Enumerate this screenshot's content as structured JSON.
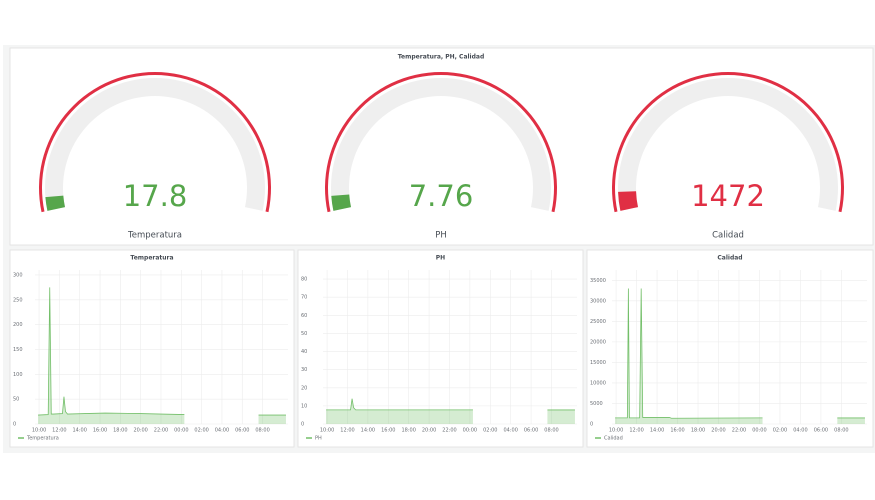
{
  "panel_title": "Temperatura, PH, Calidad",
  "chart_data": [
    {
      "type": "gauge",
      "label": "Temperatura",
      "value": 17.8,
      "ylim": [
        0,
        500
      ],
      "color": "#56a64b",
      "threshold_color": "#e02f44"
    },
    {
      "type": "gauge",
      "label": "PH",
      "value": 7.76,
      "ylim": [
        0,
        200
      ],
      "color": "#56a64b",
      "threshold_color": "#e02f44"
    },
    {
      "type": "gauge",
      "label": "Calidad",
      "value": 1472,
      "ylim": [
        0,
        30000
      ],
      "color": "#e02f44",
      "threshold_color": "#e02f44"
    },
    {
      "type": "area",
      "title": "Temperatura",
      "x": [
        9.9,
        10.9,
        11.05,
        11.2,
        11.4,
        12.3,
        12.45,
        12.6,
        12.8,
        14.5,
        16.5,
        20,
        22,
        24.3,
        24.5,
        31.6,
        34.3
      ],
      "series": [
        {
          "name": "Temperatura",
          "color": "#73bf69",
          "values": [
            18,
            19,
            275,
            20,
            20,
            21,
            55,
            25,
            20,
            21,
            22,
            21,
            20,
            19,
            null,
            18,
            18
          ]
        }
      ],
      "xlim": [
        9.6,
        34.5
      ],
      "xticks": [
        {
          "value": 10,
          "label": "10:00"
        },
        {
          "value": 12,
          "label": "12:00"
        },
        {
          "value": 14,
          "label": "14:00"
        },
        {
          "value": 16,
          "label": "16:00"
        },
        {
          "value": 18,
          "label": "18:00"
        },
        {
          "value": 20,
          "label": "20:00"
        },
        {
          "value": 22,
          "label": "22:00"
        },
        {
          "value": 24,
          "label": "00:00"
        },
        {
          "value": 26,
          "label": "02:00"
        },
        {
          "value": 28,
          "label": "04:00"
        },
        {
          "value": 30,
          "label": "06:00"
        },
        {
          "value": 32,
          "label": "08:00"
        }
      ],
      "ylim": [
        0,
        310
      ],
      "yticks": [
        0,
        50,
        100,
        150,
        200,
        250,
        300
      ],
      "grid": true
    },
    {
      "type": "area",
      "title": "PH",
      "x": [
        9.9,
        12.3,
        12.45,
        12.6,
        12.8,
        24.3,
        24.5,
        31.6,
        34.3
      ],
      "series": [
        {
          "name": "PH",
          "color": "#73bf69",
          "values": [
            7.8,
            7.8,
            14,
            9,
            7.8,
            7.8,
            null,
            7.76,
            7.76
          ]
        }
      ],
      "xlim": [
        9.6,
        34.5
      ],
      "xticks": [
        {
          "value": 10,
          "label": "10:00"
        },
        {
          "value": 12,
          "label": "12:00"
        },
        {
          "value": 14,
          "label": "14:00"
        },
        {
          "value": 16,
          "label": "16:00"
        },
        {
          "value": 18,
          "label": "18:00"
        },
        {
          "value": 20,
          "label": "20:00"
        },
        {
          "value": 22,
          "label": "22:00"
        },
        {
          "value": 24,
          "label": "00:00"
        },
        {
          "value": 26,
          "label": "02:00"
        },
        {
          "value": 28,
          "label": "04:00"
        },
        {
          "value": 30,
          "label": "06:00"
        },
        {
          "value": 32,
          "label": "08:00"
        }
      ],
      "ylim": [
        0,
        85
      ],
      "yticks": [
        0,
        10,
        20,
        30,
        40,
        50,
        60,
        70,
        80
      ],
      "grid": true
    },
    {
      "type": "area",
      "title": "Calidad",
      "x": [
        9.9,
        11.1,
        11.2,
        11.3,
        12.3,
        12.45,
        12.6,
        15.2,
        15.4,
        24.3,
        24.5,
        31.6,
        34.3
      ],
      "series": [
        {
          "name": "Calidad",
          "color": "#73bf69",
          "values": [
            1500,
            1500,
            33000,
            1500,
            1500,
            33000,
            1600,
            1600,
            1400,
            1500,
            null,
            1472,
            1472
          ]
        }
      ],
      "xlim": [
        9.6,
        34.5
      ],
      "xticks": [
        {
          "value": 10,
          "label": "10:00"
        },
        {
          "value": 12,
          "label": "12:00"
        },
        {
          "value": 14,
          "label": "14:00"
        },
        {
          "value": 16,
          "label": "16:00"
        },
        {
          "value": 18,
          "label": "18:00"
        },
        {
          "value": 20,
          "label": "20:00"
        },
        {
          "value": 22,
          "label": "22:00"
        },
        {
          "value": 24,
          "label": "00:00"
        },
        {
          "value": 26,
          "label": "02:00"
        },
        {
          "value": 28,
          "label": "04:00"
        },
        {
          "value": 30,
          "label": "06:00"
        },
        {
          "value": 32,
          "label": "08:00"
        }
      ],
      "ylim": [
        0,
        37500
      ],
      "yticks": [
        0,
        5000,
        10000,
        15000,
        20000,
        25000,
        30000,
        35000
      ],
      "grid": true
    }
  ]
}
